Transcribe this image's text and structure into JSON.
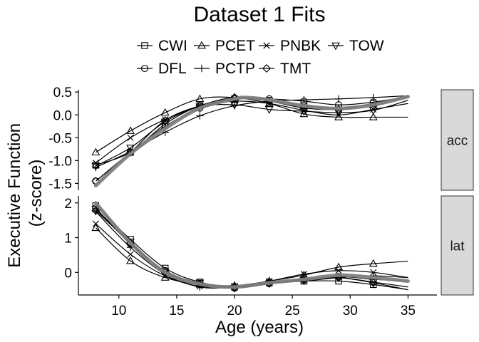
{
  "chart_data": {
    "type": "line",
    "title": "Dataset 1 Fits",
    "xlabel": "Age (years)",
    "ylabel_lines": [
      "Executive Function",
      "(z-score)"
    ],
    "x_ticks": [
      10,
      15,
      20,
      25,
      30,
      35
    ],
    "xlim": [
      6.5,
      37.5
    ],
    "facets": [
      {
        "label": "acc",
        "ylim": [
          -1.65,
          0.55
        ],
        "y_ticks": [
          -1.5,
          -1.0,
          -0.5,
          0.0,
          0.5
        ],
        "y_tick_labels": [
          "-1.5",
          "-1.0",
          "-0.5",
          "0.0",
          "0.5"
        ],
        "average_fit": [
          [
            8,
            -1.55
          ],
          [
            11,
            -0.85
          ],
          [
            14,
            -0.3
          ],
          [
            17,
            0.15
          ],
          [
            20,
            0.35
          ],
          [
            21,
            0.38
          ],
          [
            23,
            0.33
          ],
          [
            26,
            0.2
          ],
          [
            29,
            0.14
          ],
          [
            32,
            0.22
          ],
          [
            35,
            0.4
          ]
        ],
        "series": [
          {
            "name": "CWI",
            "marker": "square",
            "x": [
              8,
              11,
              14,
              17,
              20,
              23,
              26,
              29,
              32,
              35
            ],
            "y": [
              -1.1,
              -0.82,
              -0.2,
              0.2,
              0.35,
              0.32,
              0.2,
              0.15,
              0.25,
              0.42
            ]
          },
          {
            "name": "DFL",
            "marker": "circle",
            "x": [
              8,
              11,
              14,
              17,
              20,
              23,
              26,
              29,
              32,
              35
            ],
            "y": [
              -1.45,
              -0.82,
              -0.25,
              0.15,
              0.35,
              0.35,
              0.3,
              0.22,
              0.28,
              0.4
            ]
          },
          {
            "name": "PCET",
            "marker": "triangle-up",
            "x": [
              8,
              11,
              14,
              17,
              20,
              23,
              26,
              29,
              32,
              35
            ],
            "y": [
              -0.82,
              -0.35,
              0.05,
              0.35,
              0.38,
              0.25,
              0.02,
              -0.05,
              -0.05,
              -0.05
            ]
          },
          {
            "name": "PCTP",
            "marker": "plus",
            "x": [
              8,
              11,
              14,
              17,
              20,
              23,
              26,
              29,
              32,
              35
            ],
            "y": [
              -1.15,
              -0.8,
              -0.38,
              -0.02,
              0.2,
              0.3,
              0.33,
              0.35,
              0.38,
              0.42
            ]
          },
          {
            "name": "PNBK",
            "marker": "x",
            "x": [
              8,
              11,
              14,
              17,
              20,
              23,
              26,
              29,
              32,
              35
            ],
            "y": [
              -1.05,
              -0.5,
              -0.1,
              0.18,
              0.3,
              0.25,
              0.1,
              0.0,
              0.12,
              0.25
            ]
          },
          {
            "name": "TMT",
            "marker": "diamond",
            "x": [
              8,
              11,
              14,
              17,
              20,
              23,
              26,
              29,
              32,
              35
            ],
            "y": [
              -1.45,
              -0.82,
              -0.12,
              0.2,
              0.38,
              0.3,
              0.15,
              0.12,
              0.2,
              0.4
            ]
          },
          {
            "name": "TOW",
            "marker": "triangle-down",
            "x": [
              8,
              11,
              14,
              17,
              20,
              23,
              26,
              29,
              32,
              35
            ],
            "y": [
              -1.12,
              -0.72,
              -0.15,
              0.18,
              0.22,
              0.12,
              0.08,
              0.05,
              0.1,
              0.32
            ]
          }
        ]
      },
      {
        "label": "lat",
        "ylim": [
          -0.65,
          2.2
        ],
        "y_ticks": [
          0,
          1,
          2
        ],
        "y_tick_labels": [
          "0",
          "1",
          "2"
        ],
        "average_fit": [
          [
            8,
            2.0
          ],
          [
            11,
            0.85
          ],
          [
            14,
            0.0
          ],
          [
            17,
            -0.33
          ],
          [
            20,
            -0.42
          ],
          [
            23,
            -0.3
          ],
          [
            26,
            -0.2
          ],
          [
            29,
            -0.08
          ],
          [
            32,
            -0.15
          ],
          [
            35,
            -0.25
          ]
        ],
        "series": [
          {
            "name": "CWI",
            "marker": "square",
            "x": [
              8,
              11,
              14,
              17,
              20,
              23,
              26,
              29,
              32,
              35
            ],
            "y": [
              1.92,
              0.95,
              0.12,
              -0.28,
              -0.42,
              -0.3,
              -0.25,
              -0.25,
              -0.35,
              -0.5
            ]
          },
          {
            "name": "DFL",
            "marker": "circle",
            "x": [
              8,
              11,
              14,
              17,
              20,
              23,
              26,
              29,
              32,
              35
            ],
            "y": [
              1.85,
              0.82,
              0.05,
              -0.32,
              -0.45,
              -0.32,
              -0.22,
              -0.12,
              -0.2,
              -0.25
            ]
          },
          {
            "name": "PCET",
            "marker": "triangle-up",
            "x": [
              8,
              11,
              14,
              17,
              20,
              23,
              26,
              29,
              32,
              35
            ],
            "y": [
              1.28,
              0.33,
              -0.15,
              -0.35,
              -0.38,
              -0.25,
              -0.08,
              0.15,
              0.25,
              0.32
            ]
          },
          {
            "name": "PCTP",
            "marker": "plus",
            "x": [
              8,
              11,
              14,
              17,
              20,
              23,
              26,
              29,
              32,
              35
            ],
            "y": [
              1.75,
              0.72,
              -0.05,
              -0.42,
              -0.42,
              -0.3,
              -0.25,
              -0.15,
              -0.1,
              -0.15
            ]
          },
          {
            "name": "PNBK",
            "marker": "x",
            "x": [
              8,
              11,
              14,
              17,
              20,
              23,
              26,
              29,
              32,
              35
            ],
            "y": [
              1.4,
              0.52,
              -0.1,
              -0.4,
              -0.4,
              -0.25,
              -0.05,
              0.05,
              0.0,
              -0.15
            ]
          },
          {
            "name": "TMT",
            "marker": "diamond",
            "x": [
              8,
              11,
              14,
              17,
              20,
              23,
              26,
              29,
              32,
              35
            ],
            "y": [
              1.78,
              0.85,
              0.0,
              -0.35,
              -0.42,
              -0.3,
              -0.2,
              -0.15,
              -0.3,
              -0.5
            ]
          },
          {
            "name": "TOW",
            "marker": "triangle-down",
            "x": [
              8,
              11,
              14,
              17,
              20,
              23,
              26,
              29,
              32,
              35
            ],
            "y": [
              1.82,
              0.88,
              0.02,
              -0.3,
              -0.45,
              -0.32,
              -0.22,
              -0.15,
              -0.28,
              -0.42
            ]
          }
        ]
      }
    ],
    "legend": {
      "placement": "top",
      "rows": [
        [
          {
            "name": "CWI",
            "marker": "square"
          },
          {
            "name": "PCET",
            "marker": "triangle-up"
          },
          {
            "name": "PNBK",
            "marker": "x"
          },
          {
            "name": "TOW",
            "marker": "triangle-down"
          }
        ],
        [
          {
            "name": "DFL",
            "marker": "circle"
          },
          {
            "name": "PCTP",
            "marker": "plus"
          },
          {
            "name": "TMT",
            "marker": "diamond"
          }
        ]
      ]
    },
    "grid": false
  }
}
